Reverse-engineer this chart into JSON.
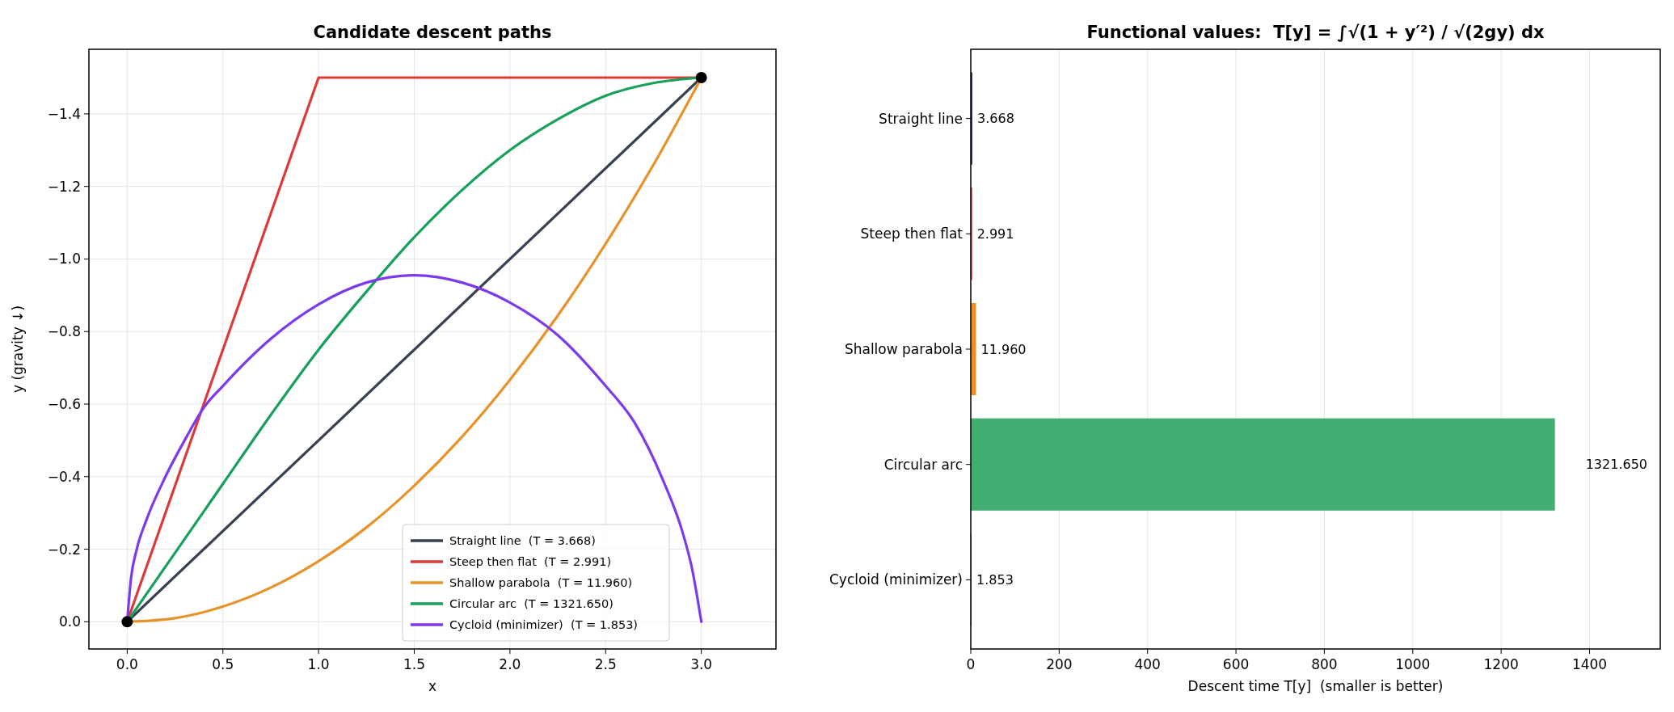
{
  "chart_data": [
    {
      "type": "line",
      "title": "Candidate descent paths",
      "xlabel": "x",
      "ylabel": "y (gravity ↓)",
      "xlim": [
        -0.2,
        3.39
      ],
      "ylim": [
        0.075,
        -1.578
      ],
      "xticks": [
        {
          "value": 0,
          "label": "0.0"
        },
        0.5,
        {
          "value": 1,
          "label": "1.0"
        },
        1.5,
        {
          "value": 2,
          "label": "2.0"
        },
        2.5,
        {
          "value": 3,
          "label": "3.0"
        }
      ],
      "yticks": [
        {
          "value": 0,
          "label": "0.0"
        },
        {
          "value": -0.2,
          "label": "−0.2"
        },
        {
          "value": -0.4,
          "label": "−0.4"
        },
        {
          "value": -0.6,
          "label": "−0.6"
        },
        {
          "value": -0.8,
          "label": "−0.8"
        },
        {
          "value": -1.0,
          "label": "−1.0"
        },
        {
          "value": -1.2,
          "label": "−1.2"
        },
        {
          "value": -1.4,
          "label": "−1.4"
        }
      ],
      "grid": true,
      "legend": "bottom right",
      "line_style": "solid",
      "series": [
        {
          "name": "Straight line  (T = 3.668)",
          "color": "#374151",
          "x": [
            0,
            3
          ],
          "values": [
            0,
            -1.5
          ]
        },
        {
          "name": "Steep then flat  (T = 2.991)",
          "color": "#dc3a3a",
          "x": [
            0,
            1,
            3
          ],
          "values": [
            0,
            -1.5,
            -1.5
          ]
        },
        {
          "name": "Shallow parabola  (T = 11.960)",
          "color": "#e8922a",
          "x": [
            0,
            0.25,
            0.5,
            0.75,
            1,
            1.25,
            1.5,
            1.75,
            2,
            2.25,
            2.5,
            2.75,
            3
          ],
          "values": [
            0,
            -0.01,
            -0.042,
            -0.094,
            -0.167,
            -0.26,
            -0.375,
            -0.51,
            -0.667,
            -0.844,
            -1.042,
            -1.26,
            -1.5
          ]
        },
        {
          "name": "Circular arc  (T = 1321.650)",
          "color": "#16a05a",
          "x": [
            0,
            0.25,
            0.5,
            0.75,
            1,
            1.25,
            1.5,
            1.75,
            2,
            2.25,
            2.5,
            2.75,
            3
          ],
          "values": [
            0,
            -0.19,
            -0.38,
            -0.57,
            -0.75,
            -0.91,
            -1.06,
            -1.19,
            -1.3,
            -1.385,
            -1.45,
            -1.485,
            -1.5
          ]
        },
        {
          "name": "Cycloid (minimizer)  (T = 1.853)",
          "color": "#7c3aed",
          "x": [
            0,
            0.02,
            0.05,
            0.1,
            0.2,
            0.3,
            0.4,
            0.5,
            0.75,
            1,
            1.25,
            1.5,
            1.75,
            2,
            2.25,
            2.5,
            2.65,
            2.8,
            2.9,
            2.95,
            3
          ],
          "values": [
            0,
            -0.12,
            -0.2,
            -0.28,
            -0.4,
            -0.5,
            -0.59,
            -0.65,
            -0.78,
            -0.875,
            -0.935,
            -0.955,
            -0.935,
            -0.88,
            -0.79,
            -0.65,
            -0.55,
            -0.39,
            -0.25,
            -0.15,
            0
          ]
        },
        {
          "type": "scatter",
          "color": "#000000",
          "marker": "circle",
          "x": [
            0,
            3
          ],
          "values": [
            0,
            -1.5
          ]
        }
      ]
    },
    {
      "type": "bar",
      "orientation": "horizontal",
      "title": "Functional values:  T[y] = ∫√(1 + y′²) / √(2gy) dx",
      "xlabel": "Descent time T[y]  (smaller is better)",
      "categories": [
        "Straight line",
        "Steep then flat",
        "Shallow parabola",
        "Circular arc",
        "Cycloid (minimizer)"
      ],
      "values": [
        3.668,
        2.991,
        11.96,
        1321.65,
        1.853
      ],
      "value_labels": [
        "3.668",
        "2.991",
        "11.960",
        "1321.650",
        "1.853"
      ],
      "colors": [
        "#374151",
        "#dc3a3a",
        "#e8922a",
        "#43ae72",
        "#7c3aed"
      ],
      "xlim": [
        0,
        1560
      ],
      "xticks": [
        0,
        200,
        400,
        600,
        800,
        1000,
        1200,
        1400
      ],
      "grid": "x"
    }
  ]
}
